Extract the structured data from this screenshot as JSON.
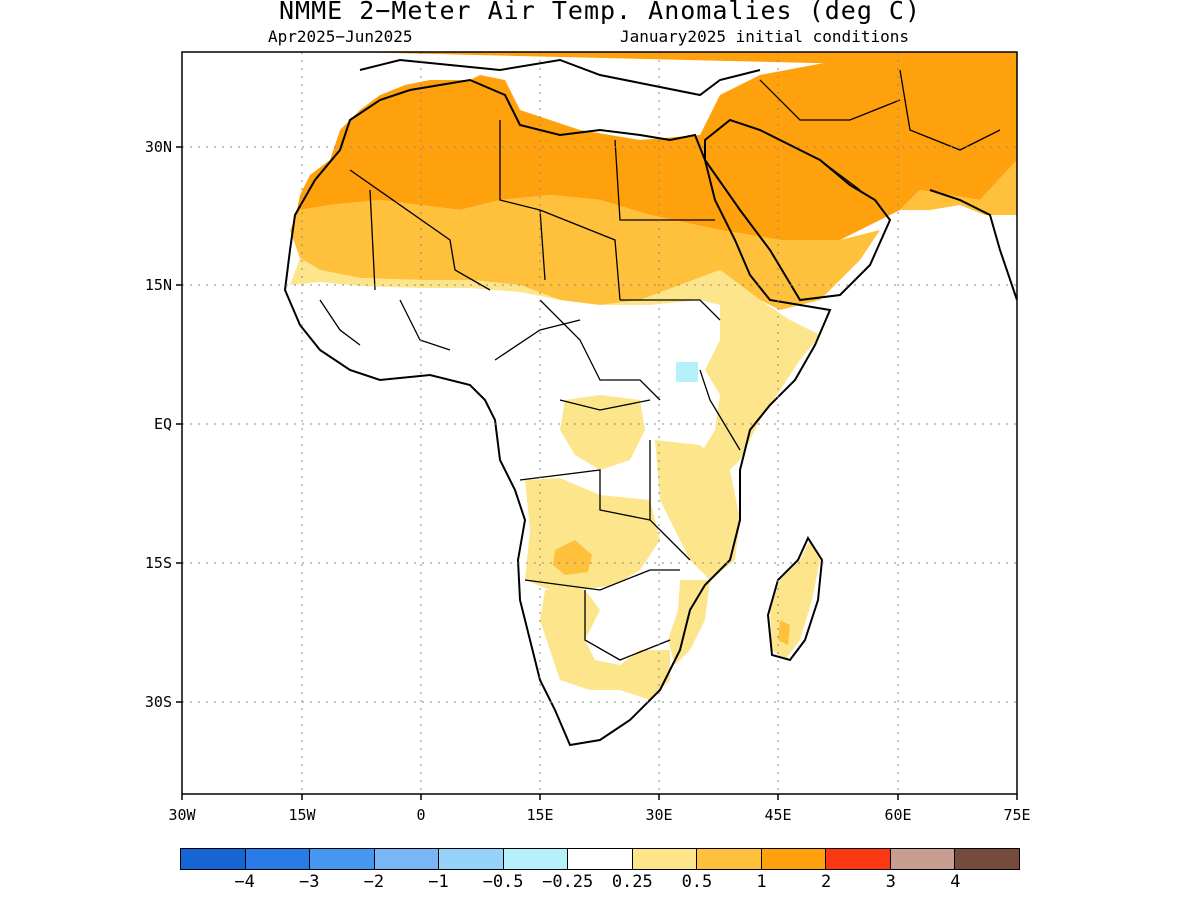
{
  "header": {
    "title": "NMME 2−Meter Air Temp. Anomalies (deg C)",
    "period": "Apr2025−Jun2025",
    "init": "January2025 initial conditions"
  },
  "axes": {
    "lat_labels": [
      "30N",
      "15N",
      "EQ",
      "15S",
      "30S"
    ],
    "lon_labels": [
      "30W",
      "15W",
      "0",
      "15E",
      "30E",
      "45E",
      "60E",
      "75E"
    ]
  },
  "colorbar": {
    "colors": [
      "#1764d4",
      "#2a7ae8",
      "#4597ef",
      "#78b6f6",
      "#97d2fa",
      "#b6f0fb",
      "#ffffff",
      "#fde58b",
      "#ffc03c",
      "#ffa10c",
      "#fb3714",
      "#c99e92",
      "#744b3c"
    ],
    "labels": [
      "−4",
      "−3",
      "−2",
      "−1",
      "−0.5",
      "−0.25",
      "0.25",
      "0.5",
      "1",
      "2",
      "3",
      "4"
    ]
  },
  "legend_classes": {
    "c05": "#fde58b",
    "c1": "#ffc03c",
    "c2": "#ffa10c",
    "cneg": "#b6f0fb"
  }
}
